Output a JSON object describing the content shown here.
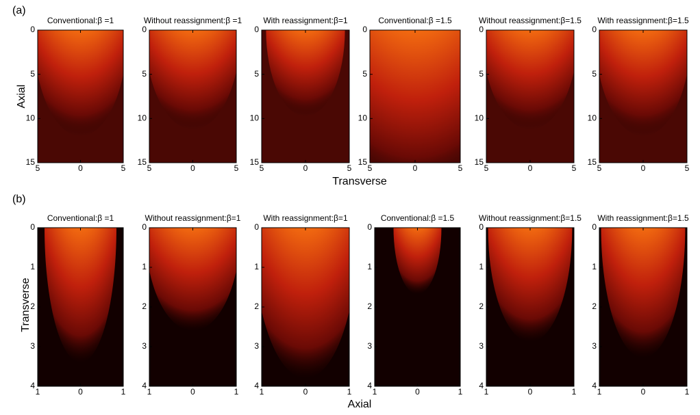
{
  "chart_data": [
    {
      "type": "heatmap",
      "panel_label": "(a)",
      "ylabel": "Axial",
      "xlabel": "Transverse",
      "title": "Conventional:β =1",
      "xlim": [
        -5,
        5
      ],
      "xticks": [
        {
          "value": -5,
          "label": "5"
        },
        0,
        5
      ],
      "ylim": [
        0,
        15
      ],
      "yticks": [
        0,
        5,
        10,
        15
      ]
    },
    {
      "type": "heatmap",
      "title": "Without reassignment:β =1",
      "xlim": [
        -5,
        5
      ],
      "xticks": [
        {
          "value": -5,
          "label": "5"
        },
        0,
        5
      ],
      "ylim": [
        0,
        15
      ],
      "yticks": [
        0,
        5,
        10,
        15
      ]
    },
    {
      "type": "heatmap",
      "title": "With reassignment:β=1",
      "xlim": [
        -5,
        5
      ],
      "xticks": [
        {
          "value": -5,
          "label": "5"
        },
        0,
        5
      ],
      "ylim": [
        0,
        15
      ],
      "yticks": [
        0,
        5,
        10,
        15
      ]
    },
    {
      "type": "heatmap",
      "title": "Conventional:β =1.5",
      "xlim": [
        -5,
        5
      ],
      "xticks": [
        {
          "value": -5,
          "label": "5"
        },
        0,
        5
      ],
      "ylim": [
        0,
        15
      ],
      "yticks": [
        0,
        5,
        10,
        15
      ]
    },
    {
      "type": "heatmap",
      "title": "Without reassignment:β=1.5",
      "xlim": [
        -5,
        5
      ],
      "xticks": [
        {
          "value": -5,
          "label": "5"
        },
        0,
        5
      ],
      "ylim": [
        0,
        15
      ],
      "yticks": [
        0,
        5,
        10,
        15
      ]
    },
    {
      "type": "heatmap",
      "title": "With reassignment:β=1.5",
      "xlim": [
        -5,
        5
      ],
      "xticks": [
        {
          "value": -5,
          "label": "5"
        },
        0,
        5
      ],
      "ylim": [
        0,
        15
      ],
      "yticks": [
        0,
        5,
        10,
        15
      ]
    },
    {
      "type": "heatmap",
      "panel_label": "(b)",
      "ylabel": "Transverse",
      "xlabel": "Axial",
      "title": "Conventional:β =1",
      "xlim": [
        -1,
        1
      ],
      "xticks": [
        {
          "value": -1,
          "label": "1"
        },
        0,
        1
      ],
      "ylim": [
        0,
        4
      ],
      "yticks": [
        0,
        1,
        2,
        3,
        4
      ]
    },
    {
      "type": "heatmap",
      "title": "Without reassignment:β=1",
      "xlim": [
        -1,
        1
      ],
      "xticks": [
        {
          "value": -1,
          "label": "1"
        },
        0,
        1
      ],
      "ylim": [
        0,
        4
      ],
      "yticks": [
        0,
        1,
        2,
        3,
        4
      ]
    },
    {
      "type": "heatmap",
      "title": "With reassignment:β=1",
      "xlim": [
        -1,
        1
      ],
      "xticks": [
        {
          "value": -1,
          "label": "1"
        },
        0,
        1
      ],
      "ylim": [
        0,
        4
      ],
      "yticks": [
        0,
        1,
        2,
        3,
        4
      ]
    },
    {
      "type": "heatmap",
      "title": "Conventional:β =1.5",
      "xlim": [
        -1,
        1
      ],
      "xticks": [
        {
          "value": -1,
          "label": "1"
        },
        0,
        1
      ],
      "ylim": [
        0,
        4
      ],
      "yticks": [
        0,
        1,
        2,
        3,
        4
      ]
    },
    {
      "type": "heatmap",
      "title": "Without reassignment:β=1.5",
      "xlim": [
        -1,
        1
      ],
      "xticks": [
        {
          "value": -1,
          "label": "1"
        },
        0,
        1
      ],
      "ylim": [
        0,
        4
      ],
      "yticks": [
        0,
        1,
        2,
        3,
        4
      ]
    },
    {
      "type": "heatmap",
      "title": "With reassignment:β=1.5",
      "xlim": [
        -1,
        1
      ],
      "xticks": [
        {
          "value": -1,
          "label": "1"
        },
        0,
        1
      ],
      "ylim": [
        0,
        4
      ],
      "yticks": [
        0,
        1,
        2,
        3,
        4
      ]
    }
  ]
}
